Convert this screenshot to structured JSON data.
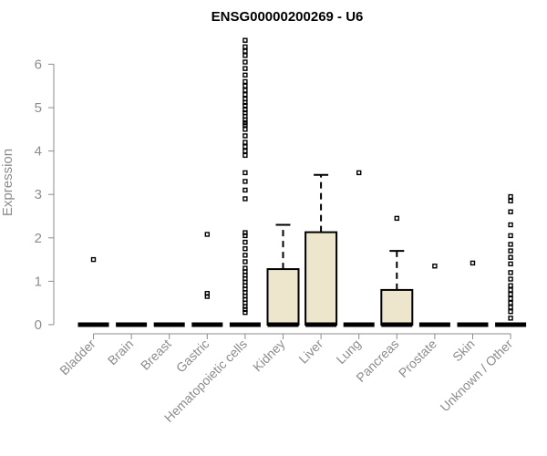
{
  "chart_data": {
    "type": "box",
    "title": "ENSG00000200269 - U6",
    "xlabel": "",
    "ylabel": "Expression",
    "ylim": [
      0,
      6.6
    ],
    "yticks": [
      0,
      1,
      2,
      3,
      4,
      5,
      6
    ],
    "grid": false,
    "categories": [
      "Bladder",
      "Brain",
      "Breast",
      "Gastric",
      "Hematopoietic cells",
      "Kidney",
      "Liver",
      "Lung",
      "Pancreas",
      "Prostate",
      "Skin",
      "Unknown / Other"
    ],
    "box_fill": "#ede6cd",
    "boxes": [
      {
        "category": "Bladder",
        "q1": 0,
        "median": 0,
        "q3": 0,
        "whisker_low": 0,
        "whisker_high": 0,
        "outliers": [
          1.5
        ]
      },
      {
        "category": "Brain",
        "q1": 0,
        "median": 0,
        "q3": 0,
        "whisker_low": 0,
        "whisker_high": 0,
        "outliers": []
      },
      {
        "category": "Breast",
        "q1": 0,
        "median": 0,
        "q3": 0,
        "whisker_low": 0,
        "whisker_high": 0,
        "outliers": []
      },
      {
        "category": "Gastric",
        "q1": 0,
        "median": 0,
        "q3": 0,
        "whisker_low": 0,
        "whisker_high": 0,
        "outliers": [
          0.65,
          0.72,
          2.08
        ]
      },
      {
        "category": "Hematopoietic cells",
        "q1": 0,
        "median": 0,
        "q3": 0,
        "whisker_low": 0,
        "whisker_high": 0,
        "outliers": [
          0.28,
          0.35,
          0.42,
          0.5,
          0.58,
          0.66,
          0.74,
          0.82,
          0.9,
          0.98,
          1.06,
          1.14,
          1.22,
          1.3,
          1.45,
          1.6,
          1.75,
          1.9,
          2.05,
          2.12,
          2.9,
          3.1,
          3.3,
          3.5,
          3.9,
          4.0,
          4.1,
          4.2,
          4.35,
          4.5,
          4.6,
          4.65,
          4.72,
          4.8,
          4.88,
          4.95,
          5.05,
          5.12,
          5.2,
          5.3,
          5.4,
          5.5,
          5.6,
          5.75,
          5.9,
          6.05,
          6.2,
          6.3,
          6.4,
          6.55
        ]
      },
      {
        "category": "Kidney",
        "q1": 0,
        "median": 0,
        "q3": 1.28,
        "whisker_low": 0,
        "whisker_high": 2.3,
        "outliers": []
      },
      {
        "category": "Liver",
        "q1": 0,
        "median": 0,
        "q3": 2.13,
        "whisker_low": 0,
        "whisker_high": 3.45,
        "outliers": []
      },
      {
        "category": "Lung",
        "q1": 0,
        "median": 0,
        "q3": 0,
        "whisker_low": 0,
        "whisker_high": 0,
        "outliers": [
          3.5
        ]
      },
      {
        "category": "Pancreas",
        "q1": 0,
        "median": 0,
        "q3": 0.8,
        "whisker_low": 0,
        "whisker_high": 1.7,
        "outliers": [
          2.45
        ]
      },
      {
        "category": "Prostate",
        "q1": 0,
        "median": 0,
        "q3": 0,
        "whisker_low": 0,
        "whisker_high": 0,
        "outliers": [
          1.35
        ]
      },
      {
        "category": "Skin",
        "q1": 0,
        "median": 0,
        "q3": 0,
        "whisker_low": 0,
        "whisker_high": 0,
        "outliers": [
          1.42
        ]
      },
      {
        "category": "Unknown / Other",
        "q1": 0,
        "median": 0,
        "q3": 0,
        "whisker_low": 0,
        "whisker_high": 0,
        "outliers": [
          0.15,
          0.3,
          0.4,
          0.5,
          0.6,
          0.7,
          0.8,
          0.9,
          1.05,
          1.2,
          1.4,
          1.55,
          1.7,
          1.85,
          2.05,
          2.3,
          2.6,
          2.85,
          2.95
        ]
      }
    ]
  }
}
